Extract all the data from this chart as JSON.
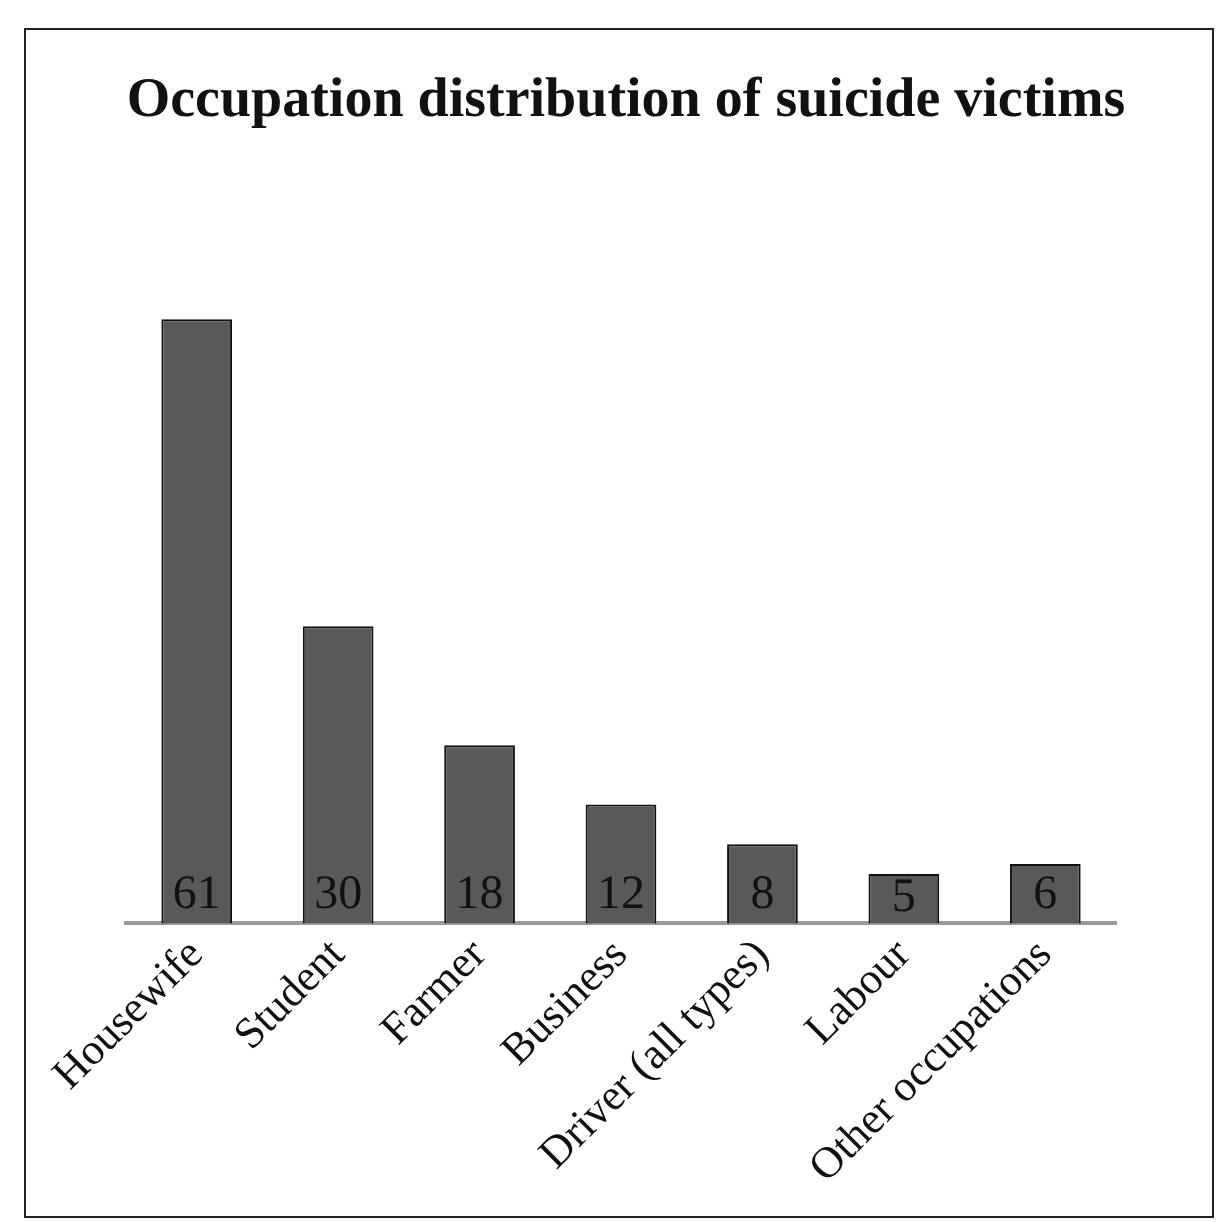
{
  "chart_data": {
    "type": "bar",
    "title": "Occupation distribution of suicide victims",
    "categories": [
      "Housewife",
      "Student",
      "Farmer",
      "Business",
      "Driver (all types)",
      "Labour",
      "Other occupations"
    ],
    "values": [
      61,
      30,
      18,
      12,
      8,
      5,
      6
    ],
    "color": "#595959",
    "data_labels": true,
    "grid": false,
    "legend": false
  }
}
